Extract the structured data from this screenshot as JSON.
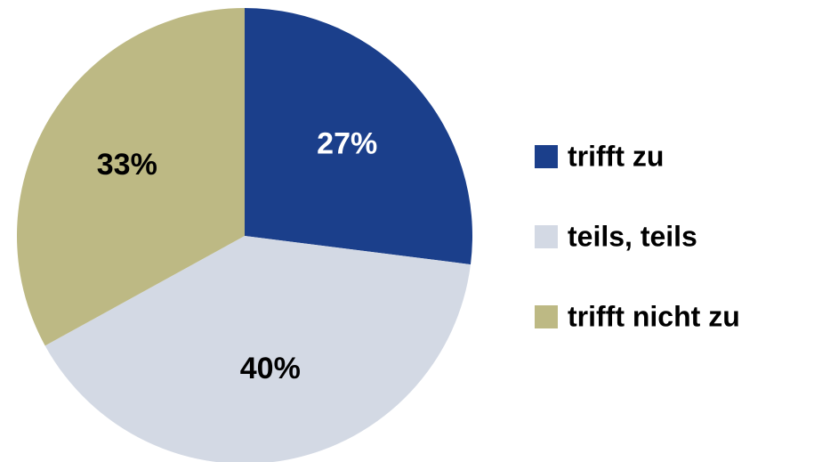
{
  "chart_data": {
    "type": "pie",
    "categories": [
      "trifft zu",
      "teils, teils",
      "trifft nicht zu"
    ],
    "values": [
      27,
      40,
      33
    ],
    "value_labels": [
      "27%",
      "40%",
      "33%"
    ],
    "colors": [
      "#1b3f8b",
      "#d3d9e4",
      "#bdb984"
    ],
    "label_colors": [
      "#ffffff",
      "#000000",
      "#000000"
    ],
    "legend": "right"
  }
}
